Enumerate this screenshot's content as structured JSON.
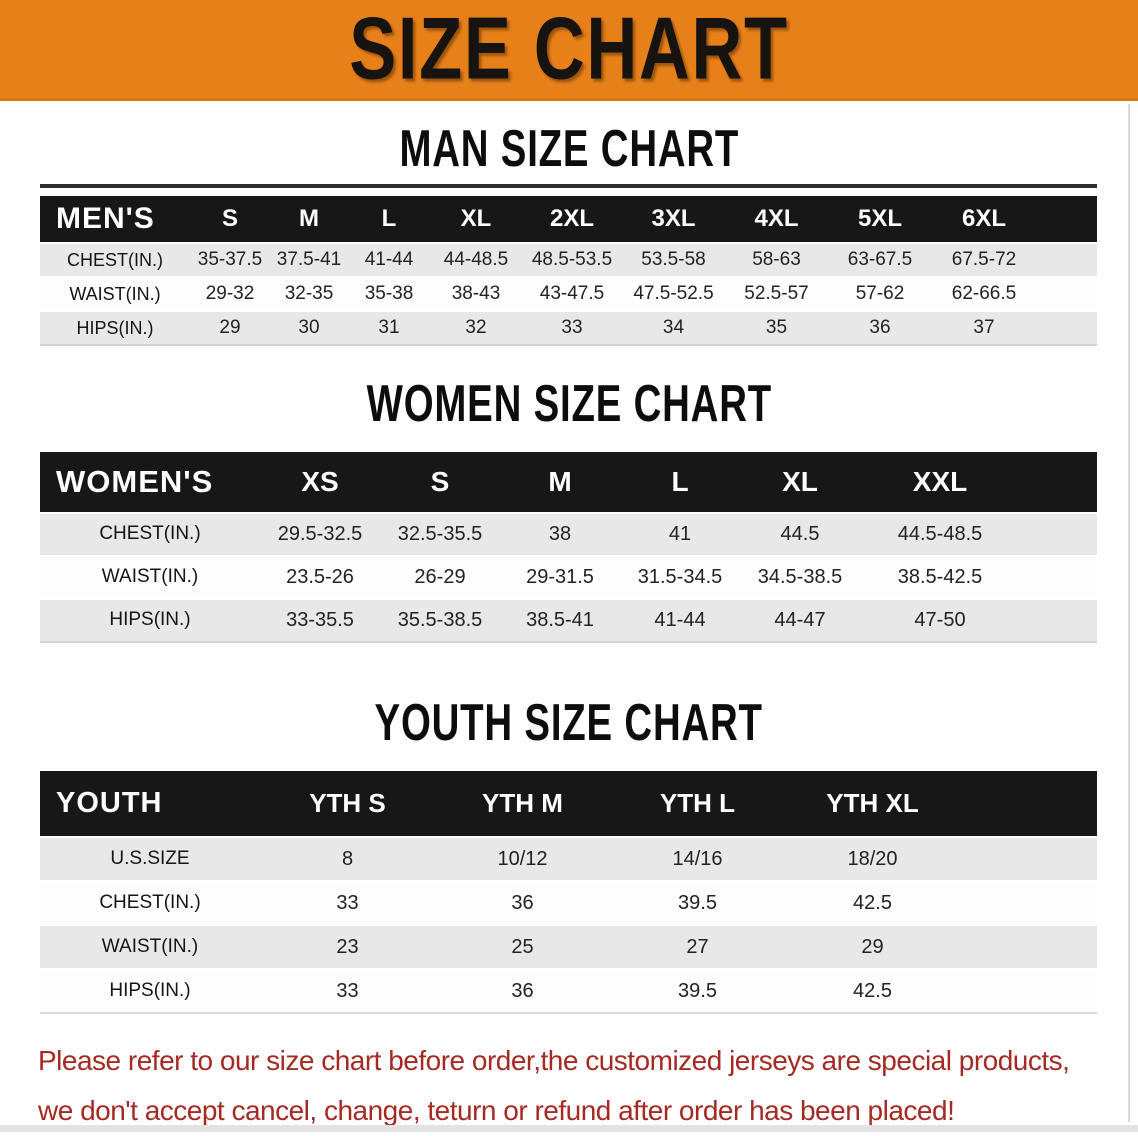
{
  "banner": {
    "title": "SIZE CHART",
    "bg_color": "#E8801A"
  },
  "colors": {
    "table_header_bg": "#171717",
    "row_stripe_gray": "#e8e8e8",
    "disclaimer_red": "#a52a23"
  },
  "sections": [
    {
      "heading": "MAN SIZE CHART",
      "table": {
        "header": [
          "MEN'S",
          "S",
          "M",
          "L",
          "XL",
          "2XL",
          "3XL",
          "4XL",
          "5XL",
          "6XL"
        ],
        "rows": [
          {
            "label": "CHEST(IN.)",
            "values": [
              "35-37.5",
              "37.5-41",
              "41-44",
              "44-48.5",
              "48.5-53.5",
              "53.5-58",
              "58-63",
              "63-67.5",
              "67.5-72"
            ]
          },
          {
            "label": "WAIST(IN.)",
            "values": [
              "29-32",
              "32-35",
              "35-38",
              "38-43",
              "43-47.5",
              "47.5-52.5",
              "52.5-57",
              "57-62",
              "62-66.5"
            ]
          },
          {
            "label": "HIPS(IN.)",
            "values": [
              "29",
              "30",
              "31",
              "32",
              "33",
              "34",
              "35",
              "36",
              "37"
            ]
          }
        ]
      }
    },
    {
      "heading": "WOMEN SIZE CHART",
      "table": {
        "header": [
          "WOMEN'S",
          "XS",
          "S",
          "M",
          "L",
          "XL",
          "XXL"
        ],
        "rows": [
          {
            "label": "CHEST(IN.)",
            "values": [
              "29.5-32.5",
              "32.5-35.5",
              "38",
              "41",
              "44.5",
              "44.5-48.5"
            ]
          },
          {
            "label": "WAIST(IN.)",
            "values": [
              "23.5-26",
              "26-29",
              "29-31.5",
              "31.5-34.5",
              "34.5-38.5",
              "38.5-42.5"
            ]
          },
          {
            "label": "HIPS(IN.)",
            "values": [
              "33-35.5",
              "35.5-38.5",
              "38.5-41",
              "41-44",
              "44-47",
              "47-50"
            ]
          }
        ]
      }
    },
    {
      "heading": "YOUTH SIZE CHART",
      "table": {
        "header": [
          "YOUTH",
          "YTH S",
          "YTH M",
          "YTH L",
          "YTH XL"
        ],
        "rows": [
          {
            "label": "U.S.SIZE",
            "values": [
              "8",
              "10/12",
              "14/16",
              "18/20"
            ]
          },
          {
            "label": "CHEST(IN.)",
            "values": [
              "33",
              "36",
              "39.5",
              "42.5"
            ]
          },
          {
            "label": "WAIST(IN.)",
            "values": [
              "23",
              "25",
              "27",
              "29"
            ]
          },
          {
            "label": "HIPS(IN.)",
            "values": [
              "33",
              "36",
              "39.5",
              "42.5"
            ]
          }
        ]
      }
    }
  ],
  "disclaimer": {
    "lines": [
      "Please refer to our size chart before order,the customized jerseys are special products,",
      "we don't accept cancel, change, teturn or refund after order has been placed!"
    ]
  }
}
